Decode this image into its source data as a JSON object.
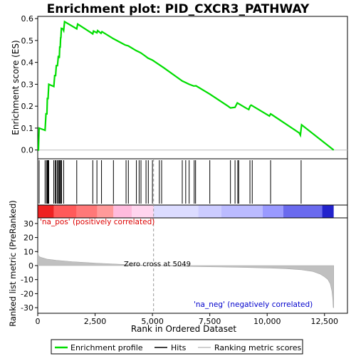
{
  "chart_data": {
    "type": "line",
    "title": "Enrichment plot: PID_CXCR3_PATHWAY",
    "x_range": [
      0,
      13500
    ],
    "x_ticks": [
      0,
      2500,
      5000,
      7500,
      10000,
      12500
    ],
    "x_tick_labels": [
      "0",
      "2,500",
      "5,000",
      "7,500",
      "10,000",
      "12,500"
    ],
    "xlabel": "Rank in Ordered Dataset",
    "es_panel": {
      "ylabel": "Enrichment score (ES)",
      "ylim": [
        -0.04,
        0.61
      ],
      "y_ticks": [
        0.0,
        0.1,
        0.2,
        0.3,
        0.4,
        0.5,
        0.6
      ],
      "y_tick_labels": [
        "0.0",
        "0.1",
        "0.2",
        "0.3",
        "0.4",
        "0.5",
        "0.6"
      ],
      "series_name": "Enrichment profile",
      "color": "#00dd00",
      "points": [
        [
          0,
          0.0
        ],
        [
          30,
          0.0
        ],
        [
          60,
          0.1
        ],
        [
          320,
          0.09
        ],
        [
          360,
          0.165
        ],
        [
          400,
          0.165
        ],
        [
          420,
          0.235
        ],
        [
          450,
          0.235
        ],
        [
          480,
          0.3
        ],
        [
          700,
          0.29
        ],
        [
          740,
          0.34
        ],
        [
          780,
          0.34
        ],
        [
          810,
          0.385
        ],
        [
          860,
          0.385
        ],
        [
          900,
          0.43
        ],
        [
          940,
          0.42
        ],
        [
          960,
          0.47
        ],
        [
          980,
          0.47
        ],
        [
          1000,
          0.515
        ],
        [
          1010,
          0.51
        ],
        [
          1030,
          0.555
        ],
        [
          1090,
          0.553
        ],
        [
          1130,
          0.545
        ],
        [
          1170,
          0.586
        ],
        [
          1700,
          0.553
        ],
        [
          1740,
          0.575
        ],
        [
          2400,
          0.53
        ],
        [
          2430,
          0.543
        ],
        [
          2580,
          0.535
        ],
        [
          2610,
          0.545
        ],
        [
          2760,
          0.533
        ],
        [
          2800,
          0.54
        ],
        [
          3300,
          0.508
        ],
        [
          3800,
          0.48
        ],
        [
          3850,
          0.478
        ],
        [
          3950,
          0.475
        ],
        [
          4300,
          0.453
        ],
        [
          4400,
          0.448
        ],
        [
          4500,
          0.443
        ],
        [
          4700,
          0.428
        ],
        [
          4800,
          0.42
        ],
        [
          5000,
          0.41
        ],
        [
          5500,
          0.375
        ],
        [
          6300,
          0.315
        ],
        [
          6400,
          0.31
        ],
        [
          6600,
          0.3
        ],
        [
          6800,
          0.292
        ],
        [
          6900,
          0.293
        ],
        [
          7500,
          0.255
        ],
        [
          8300,
          0.2
        ],
        [
          8400,
          0.192
        ],
        [
          8600,
          0.195
        ],
        [
          8700,
          0.215
        ],
        [
          9100,
          0.19
        ],
        [
          9200,
          0.185
        ],
        [
          9250,
          0.2
        ],
        [
          9300,
          0.205
        ],
        [
          10100,
          0.155
        ],
        [
          10150,
          0.165
        ],
        [
          11400,
          0.078
        ],
        [
          11450,
          0.068
        ],
        [
          11500,
          0.115
        ],
        [
          12900,
          0.0
        ]
      ]
    },
    "hits": [
      60,
      320,
      380,
      420,
      450,
      480,
      700,
      760,
      800,
      860,
      900,
      940,
      970,
      1000,
      1040,
      1130,
      1700,
      2400,
      2580,
      2780,
      3300,
      3850,
      3950,
      4300,
      4420,
      4500,
      4720,
      4820,
      5000,
      5300,
      5400,
      6300,
      6450,
      6600,
      6820,
      6880,
      7500,
      8400,
      8600,
      8720,
      8760,
      9250,
      9350,
      10150,
      11480
    ],
    "rank_metric_panel": {
      "ylabel": "Ranked list metric (PreRanked)",
      "ylim": [
        -34,
        34
      ],
      "y_ticks": [
        30,
        20,
        10,
        0,
        -10,
        -20,
        -30
      ],
      "y_tick_labels": [
        "30",
        "20",
        "10",
        "0",
        "-10",
        "-20",
        "-30"
      ],
      "series_name": "Ranking metric scores",
      "color": "#c0c0c0",
      "curve": [
        [
          0,
          9
        ],
        [
          50,
          6.5
        ],
        [
          150,
          5.8
        ],
        [
          400,
          4.6
        ],
        [
          800,
          3.8
        ],
        [
          1500,
          2.8
        ],
        [
          2500,
          1.8
        ],
        [
          3500,
          1.0
        ],
        [
          4200,
          0.5
        ],
        [
          5049,
          0
        ],
        [
          6000,
          -0.4
        ],
        [
          7000,
          -0.7
        ],
        [
          8000,
          -1.0
        ],
        [
          9000,
          -1.3
        ],
        [
          10000,
          -1.7
        ],
        [
          10800,
          -2.2
        ],
        [
          11500,
          -3.0
        ],
        [
          12000,
          -4.2
        ],
        [
          12300,
          -6
        ],
        [
          12500,
          -8
        ],
        [
          12650,
          -10
        ],
        [
          12750,
          -13
        ],
        [
          12820,
          -18
        ],
        [
          12860,
          -24
        ],
        [
          12880,
          -30
        ],
        [
          12900,
          -30
        ]
      ]
    },
    "zero_cross_label": "Zero cross at 5049",
    "pos_label": "'na_pos' (positively correlated)",
    "neg_label": "'na_neg' (negatively correlated)",
    "pos_color": "#dd0000",
    "neg_color": "#0000cc",
    "n_genes": 12900,
    "color_bar_segments": [
      {
        "from": 0,
        "to": 700,
        "color": "#ee2222"
      },
      {
        "from": 700,
        "to": 1700,
        "color": "#ff5a5a"
      },
      {
        "from": 1700,
        "to": 2600,
        "color": "#ff7878"
      },
      {
        "from": 2600,
        "to": 3300,
        "color": "#ff9a9a"
      },
      {
        "from": 3300,
        "to": 4100,
        "color": "#ffbbdd"
      },
      {
        "from": 4100,
        "to": 5049,
        "color": "#ffd5ee"
      },
      {
        "from": 5049,
        "to": 7000,
        "color": "#dcdcff"
      },
      {
        "from": 7000,
        "to": 8000,
        "color": "#ccccff"
      },
      {
        "from": 8000,
        "to": 9800,
        "color": "#bbbbff"
      },
      {
        "from": 9800,
        "to": 10700,
        "color": "#9a9aff"
      },
      {
        "from": 10700,
        "to": 12400,
        "color": "#6a6aee"
      },
      {
        "from": 12400,
        "to": 12900,
        "color": "#2222cc"
      }
    ],
    "legend": {
      "placement": "bottom",
      "items": [
        {
          "label": "Enrichment profile",
          "color": "#00dd00"
        },
        {
          "label": "Hits",
          "color": "#000000"
        },
        {
          "label": "Ranking metric scores",
          "color": "#c0c0c0"
        }
      ]
    }
  }
}
